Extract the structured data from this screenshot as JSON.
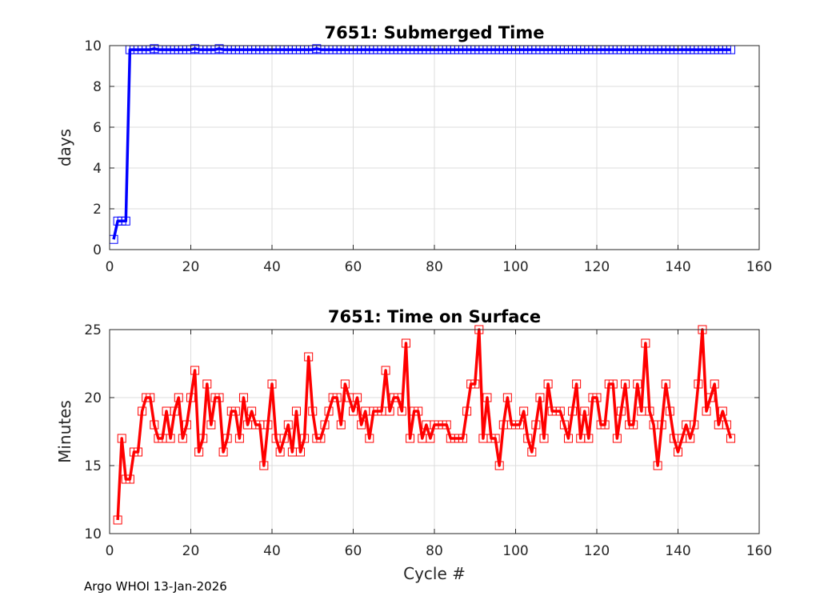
{
  "footer": "Argo WHOI 13-Jan-2026",
  "colors": {
    "series_top": "#0000ff",
    "series_bottom": "#ff0000",
    "grid": "#dcdcdc",
    "axes": "#262626"
  },
  "chart_data": [
    {
      "type": "line",
      "title": "7651: Submerged Time",
      "xlabel": "",
      "ylabel": "days",
      "xlim": [
        0,
        160
      ],
      "ylim": [
        0,
        10
      ],
      "xticks": [
        0,
        20,
        40,
        60,
        80,
        100,
        120,
        140,
        160
      ],
      "yticks": [
        0,
        2,
        4,
        6,
        8,
        10
      ],
      "grid": true,
      "marker": "square",
      "series": [
        {
          "x": [
            1,
            2,
            3,
            4,
            5,
            6,
            7,
            8,
            9,
            10,
            11,
            12,
            13,
            14,
            15,
            16,
            17,
            18,
            19,
            20,
            21,
            22,
            23,
            24,
            25,
            26,
            27,
            28,
            29,
            30,
            31,
            32,
            33,
            34,
            35,
            36,
            37,
            38,
            39,
            40,
            41,
            42,
            43,
            44,
            45,
            46,
            47,
            48,
            49,
            50,
            51,
            52,
            53,
            54,
            55,
            56,
            57,
            58,
            59,
            60,
            61,
            62,
            63,
            64,
            65,
            66,
            67,
            68,
            69,
            70,
            71,
            72,
            73,
            74,
            75,
            76,
            77,
            78,
            79,
            80,
            81,
            82,
            83,
            84,
            85,
            86,
            87,
            88,
            89,
            90,
            91,
            92,
            93,
            94,
            95,
            96,
            97,
            98,
            99,
            100,
            101,
            102,
            103,
            104,
            105,
            106,
            107,
            108,
            109,
            110,
            111,
            112,
            113,
            114,
            115,
            116,
            117,
            118,
            119,
            120,
            121,
            122,
            123,
            124,
            125,
            126,
            127,
            128,
            129,
            130,
            131,
            132,
            133,
            134,
            135,
            136,
            137,
            138,
            139,
            140,
            141,
            142,
            143,
            144,
            145,
            146,
            147,
            148,
            149,
            150,
            151,
            152,
            153
          ],
          "y": [
            0.5,
            1.4,
            1.4,
            1.4,
            9.8,
            9.8,
            9.8,
            9.8,
            9.8,
            9.8,
            9.85,
            9.8,
            9.8,
            9.8,
            9.8,
            9.8,
            9.8,
            9.8,
            9.8,
            9.8,
            9.85,
            9.8,
            9.8,
            9.8,
            9.8,
            9.8,
            9.85,
            9.8,
            9.8,
            9.8,
            9.8,
            9.8,
            9.8,
            9.8,
            9.8,
            9.8,
            9.8,
            9.8,
            9.8,
            9.8,
            9.8,
            9.8,
            9.8,
            9.8,
            9.8,
            9.8,
            9.8,
            9.8,
            9.8,
            9.8,
            9.85,
            9.8,
            9.8,
            9.8,
            9.8,
            9.8,
            9.8,
            9.8,
            9.8,
            9.8,
            9.8,
            9.8,
            9.8,
            9.8,
            9.8,
            9.8,
            9.8,
            9.8,
            9.8,
            9.8,
            9.8,
            9.8,
            9.8,
            9.8,
            9.8,
            9.8,
            9.8,
            9.8,
            9.8,
            9.8,
            9.8,
            9.8,
            9.8,
            9.8,
            9.8,
            9.8,
            9.8,
            9.8,
            9.8,
            9.8,
            9.8,
            9.8,
            9.8,
            9.8,
            9.8,
            9.8,
            9.8,
            9.8,
            9.8,
            9.8,
            9.8,
            9.8,
            9.8,
            9.8,
            9.8,
            9.8,
            9.8,
            9.8,
            9.8,
            9.8,
            9.8,
            9.8,
            9.8,
            9.8,
            9.8,
            9.8,
            9.8,
            9.8,
            9.8,
            9.8,
            9.8,
            9.8,
            9.8,
            9.8,
            9.8,
            9.8,
            9.8,
            9.8,
            9.8,
            9.8,
            9.8,
            9.8,
            9.8,
            9.8,
            9.8,
            9.8,
            9.8,
            9.8,
            9.8,
            9.8,
            9.8,
            9.8,
            9.8,
            9.8,
            9.8,
            9.8,
            9.8,
            9.8,
            9.8,
            9.8,
            9.8,
            9.8,
            9.8
          ]
        }
      ]
    },
    {
      "type": "line",
      "title": "7651: Time on Surface",
      "xlabel": "Cycle #",
      "ylabel": "Minutes",
      "xlim": [
        0,
        160
      ],
      "ylim": [
        10,
        25
      ],
      "xticks": [
        0,
        20,
        40,
        60,
        80,
        100,
        120,
        140,
        160
      ],
      "yticks": [
        10,
        15,
        20,
        25
      ],
      "grid": true,
      "marker": "square",
      "series": [
        {
          "x": [
            2,
            3,
            4,
            5,
            6,
            7,
            8,
            9,
            10,
            11,
            12,
            13,
            14,
            15,
            16,
            17,
            18,
            19,
            20,
            21,
            22,
            23,
            24,
            25,
            26,
            27,
            28,
            29,
            30,
            31,
            32,
            33,
            34,
            35,
            36,
            37,
            38,
            39,
            40,
            41,
            42,
            43,
            44,
            45,
            46,
            47,
            48,
            49,
            50,
            51,
            52,
            53,
            54,
            55,
            56,
            57,
            58,
            59,
            60,
            61,
            62,
            63,
            64,
            65,
            66,
            67,
            68,
            69,
            70,
            71,
            72,
            73,
            74,
            75,
            76,
            77,
            78,
            79,
            80,
            81,
            82,
            83,
            84,
            85,
            86,
            87,
            88,
            89,
            90,
            91,
            92,
            93,
            94,
            95,
            96,
            97,
            98,
            99,
            100,
            101,
            102,
            103,
            104,
            105,
            106,
            107,
            108,
            109,
            110,
            111,
            112,
            113,
            114,
            115,
            116,
            117,
            118,
            119,
            120,
            121,
            122,
            123,
            124,
            125,
            126,
            127,
            128,
            129,
            130,
            131,
            132,
            133,
            134,
            135,
            136,
            137,
            138,
            139,
            140,
            141,
            142,
            143,
            144,
            145,
            146,
            147,
            148,
            149,
            150,
            151,
            152,
            153
          ],
          "y": [
            11,
            17,
            14,
            14,
            16,
            16,
            19,
            20,
            20,
            18,
            17,
            17,
            19,
            17,
            19,
            20,
            17,
            18,
            20,
            22,
            16,
            17,
            21,
            18,
            20,
            20,
            16,
            17,
            19,
            19,
            17,
            20,
            18,
            19,
            18,
            18,
            15,
            18,
            21,
            17,
            16,
            17,
            18,
            16,
            19,
            16,
            17,
            23,
            19,
            17,
            17,
            18,
            19,
            20,
            20,
            18,
            21,
            20,
            19,
            20,
            18,
            19,
            17,
            19,
            19,
            19,
            22,
            19,
            20,
            20,
            19,
            24,
            17,
            19,
            19,
            17,
            18,
            17,
            18,
            18,
            18,
            18,
            17,
            17,
            17,
            17,
            19,
            21,
            21,
            25,
            17,
            20,
            17,
            17,
            15,
            18,
            20,
            18,
            18,
            18,
            19,
            17,
            16,
            18,
            20,
            17,
            21,
            19,
            19,
            19,
            18,
            17,
            19,
            21,
            17,
            19,
            17,
            20,
            20,
            18,
            18,
            21,
            21,
            17,
            19,
            21,
            18,
            18,
            21,
            19,
            24,
            19,
            18,
            15,
            18,
            21,
            19,
            17,
            16,
            17,
            18,
            17,
            18,
            21,
            25,
            19,
            20,
            21,
            18,
            19,
            18,
            17
          ]
        }
      ]
    }
  ]
}
